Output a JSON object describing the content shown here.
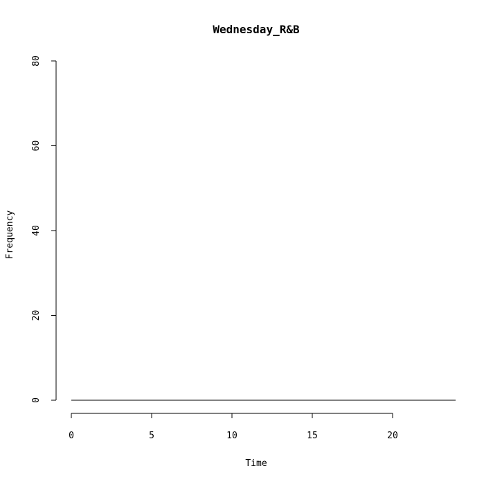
{
  "chart_data": {
    "type": "line",
    "title": "Wednesday_R&B",
    "xlabel": "Time",
    "ylabel": "Frequency",
    "xlim": [
      0,
      24
    ],
    "ylim": [
      0,
      80
    ],
    "x_ticks": [
      0,
      5,
      10,
      15,
      20
    ],
    "x_tick_labels": [
      "0",
      "5",
      "10",
      "15",
      "20"
    ],
    "y_ticks": [
      0,
      20,
      40,
      60,
      80
    ],
    "y_tick_labels": [
      "0",
      "20",
      "40",
      "60",
      "80"
    ],
    "series": [
      {
        "name": "frequency",
        "x": [
          0,
          24
        ],
        "y": [
          0,
          0
        ]
      }
    ],
    "colors": {
      "line": "#000000",
      "background": "#ffffff"
    }
  }
}
